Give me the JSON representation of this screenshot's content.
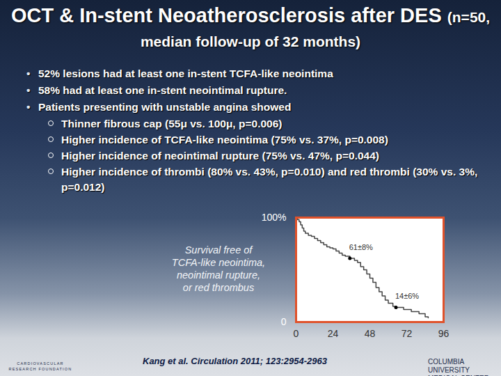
{
  "slide": {
    "title": "OCT & In-stent Neoatherosclerosis after DES",
    "subtitle": "(n=50, median follow-up of 32 months)",
    "bullets": [
      {
        "text": "52% lesions had at least one in-stent TCFA-like neointima"
      },
      {
        "text": "58% had at least one in-stent neointimal rupture."
      },
      {
        "text": "Patients presenting with unstable angina showed",
        "sub": [
          "Thinner fibrous cap (55μ vs. 100μ, p=0.006)",
          "Higher incidence of TCFA-like neointima (75% vs. 37%, p=0.008)",
          "Higher incidence of neointimal rupture (75% vs. 47%, p=0.044)",
          "Higher incidence of thrombi (80% vs. 43%, p=0.010) and red thrombi (30% vs. 3%, p=0.012)"
        ]
      }
    ],
    "citation": "Kang et al. Circulation 2011; 123:2954-2963",
    "logos": [
      "CARDIOVASCULAR RESEARCH FOUNDATION",
      "COLUMBIA UNIVERSITY MEDICAL CENTER"
    ]
  },
  "chart_data": {
    "type": "line",
    "y_label": "Survival free of TCFA-like neointima, neointimal rupture, or red thrombus",
    "x": [
      0,
      1,
      2,
      3,
      4,
      5,
      6,
      8,
      10,
      12,
      14,
      16,
      18,
      20,
      22,
      24,
      26,
      28,
      30,
      32,
      35,
      38,
      40,
      42,
      44,
      46,
      48,
      50,
      52,
      54,
      56,
      58,
      60,
      63,
      65,
      70,
      75,
      80,
      84,
      86
    ],
    "values": [
      100,
      98,
      96,
      93,
      90,
      87,
      85,
      83,
      82,
      80,
      78,
      76,
      74,
      72,
      71,
      70,
      68,
      66,
      64,
      63,
      61,
      59,
      57,
      53,
      50,
      46,
      42,
      38,
      33,
      29,
      25,
      21,
      18,
      15,
      14,
      12,
      10,
      8,
      5,
      4
    ],
    "color": "#444444",
    "line_style": "step",
    "xlim": [
      0,
      96
    ],
    "xticks": [
      0,
      24,
      48,
      72,
      96
    ],
    "ylim": [
      0,
      100
    ],
    "yticks": [
      {
        "value": 100,
        "label": "100%"
      },
      0
    ],
    "grid": false,
    "annotations": [
      {
        "text": "61±8%",
        "x": 35,
        "y": 61
      },
      {
        "text": "14±6%",
        "x": 65,
        "y": 14
      }
    ]
  }
}
